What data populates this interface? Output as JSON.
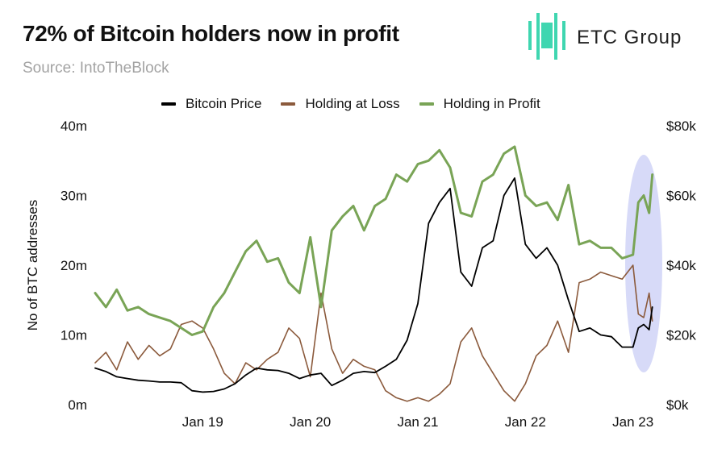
{
  "header": {
    "title": "72% of Bitcoin holders now in profit",
    "source": "Source: IntoTheBlock"
  },
  "brand": {
    "name": "ETC Group",
    "mark_icon": "etc-group-logo-icon",
    "mark_color": "#3fd6b0"
  },
  "legend": [
    {
      "label": "Bitcoin Price",
      "color": "#000000"
    },
    {
      "label": "Holding at Loss",
      "color": "#8b5a3c"
    },
    {
      "label": "Holding in Profit",
      "color": "#79a456"
    }
  ],
  "highlight": {
    "color": "#c9cdf5",
    "note": "recent period"
  },
  "chart_data": {
    "type": "line",
    "ylabel": "No of BTC addresses",
    "y_left_ticks": [
      "0m",
      "10m",
      "20m",
      "30m",
      "40m"
    ],
    "y_left_range": [
      0,
      40
    ],
    "y_right_ticks": [
      "$0k",
      "$20k",
      "$40k",
      "$60k",
      "$80k"
    ],
    "y_right_range": [
      0,
      80
    ],
    "x_ticks": [
      "Jan 19",
      "Jan 20",
      "Jan 21",
      "Jan 22",
      "Jan 23"
    ],
    "x_tick_positions": [
      2019.0,
      2020.0,
      2021.0,
      2022.0,
      2023.0
    ],
    "x_range": [
      2018.0,
      2023.25
    ],
    "series": [
      {
        "name": "Bitcoin Price",
        "axis": "right",
        "color": "#000000",
        "x": [
          2018.0,
          2018.1,
          2018.2,
          2018.3,
          2018.4,
          2018.5,
          2018.6,
          2018.7,
          2018.8,
          2018.9,
          2019.0,
          2019.1,
          2019.2,
          2019.3,
          2019.4,
          2019.5,
          2019.6,
          2019.7,
          2019.8,
          2019.9,
          2020.0,
          2020.1,
          2020.2,
          2020.3,
          2020.4,
          2020.5,
          2020.6,
          2020.7,
          2020.8,
          2020.9,
          2021.0,
          2021.1,
          2021.2,
          2021.3,
          2021.4,
          2021.5,
          2021.6,
          2021.7,
          2021.8,
          2021.9,
          2022.0,
          2022.1,
          2022.2,
          2022.3,
          2022.4,
          2022.5,
          2022.6,
          2022.7,
          2022.8,
          2022.9,
          2023.0,
          2023.05,
          2023.1,
          2023.15,
          2023.18
        ],
        "values": [
          10.5,
          9.5,
          8.0,
          7.5,
          7.0,
          6.8,
          6.5,
          6.5,
          6.3,
          4.0,
          3.6,
          3.8,
          4.5,
          6.0,
          8.5,
          10.5,
          10.0,
          9.8,
          9.0,
          7.5,
          8.5,
          9.0,
          5.5,
          7.0,
          9.0,
          9.5,
          9.2,
          11.0,
          13.0,
          18.5,
          29.0,
          52.0,
          58.0,
          62.0,
          38.0,
          34.0,
          45.0,
          47.0,
          60.0,
          65.0,
          46.0,
          42.0,
          45.0,
          40.0,
          30.0,
          21.0,
          22.0,
          20.0,
          19.5,
          16.5,
          16.5,
          22.0,
          23.0,
          21.5,
          28.0
        ]
      },
      {
        "name": "Holding at Loss",
        "axis": "left",
        "color": "#8b5a3c",
        "x": [
          2018.0,
          2018.1,
          2018.2,
          2018.3,
          2018.4,
          2018.5,
          2018.6,
          2018.7,
          2018.8,
          2018.9,
          2019.0,
          2019.1,
          2019.2,
          2019.3,
          2019.4,
          2019.5,
          2019.6,
          2019.7,
          2019.8,
          2019.9,
          2020.0,
          2020.1,
          2020.2,
          2020.3,
          2020.4,
          2020.5,
          2020.6,
          2020.7,
          2020.8,
          2020.9,
          2021.0,
          2021.1,
          2021.2,
          2021.3,
          2021.4,
          2021.5,
          2021.6,
          2021.7,
          2021.8,
          2021.9,
          2022.0,
          2022.1,
          2022.2,
          2022.3,
          2022.4,
          2022.5,
          2022.6,
          2022.7,
          2022.8,
          2022.9,
          2023.0,
          2023.05,
          2023.1,
          2023.15,
          2023.18
        ],
        "values": [
          6.0,
          7.5,
          5.0,
          9.0,
          6.5,
          8.5,
          7.0,
          8.0,
          11.5,
          12.0,
          11.0,
          8.0,
          4.5,
          3.0,
          6.0,
          5.0,
          6.5,
          7.5,
          11.0,
          9.5,
          4.0,
          16.0,
          8.0,
          4.5,
          6.5,
          5.5,
          5.0,
          2.0,
          1.0,
          0.5,
          1.0,
          0.5,
          1.5,
          3.0,
          9.0,
          11.0,
          7.0,
          4.5,
          2.0,
          0.5,
          3.0,
          7.0,
          8.5,
          12.0,
          7.5,
          17.5,
          18.0,
          19.0,
          18.5,
          18.0,
          20.0,
          13.0,
          12.5,
          16.0,
          12.0
        ]
      },
      {
        "name": "Holding in Profit",
        "axis": "left",
        "color": "#79a456",
        "x": [
          2018.0,
          2018.1,
          2018.2,
          2018.3,
          2018.4,
          2018.5,
          2018.6,
          2018.7,
          2018.8,
          2018.9,
          2019.0,
          2019.1,
          2019.2,
          2019.3,
          2019.4,
          2019.5,
          2019.6,
          2019.7,
          2019.8,
          2019.9,
          2020.0,
          2020.1,
          2020.2,
          2020.3,
          2020.4,
          2020.5,
          2020.6,
          2020.7,
          2020.8,
          2020.9,
          2021.0,
          2021.1,
          2021.2,
          2021.3,
          2021.4,
          2021.5,
          2021.6,
          2021.7,
          2021.8,
          2021.9,
          2022.0,
          2022.1,
          2022.2,
          2022.3,
          2022.4,
          2022.5,
          2022.6,
          2022.7,
          2022.8,
          2022.9,
          2023.0,
          2023.05,
          2023.1,
          2023.15,
          2023.18
        ],
        "values": [
          16.0,
          14.0,
          16.5,
          13.5,
          14.0,
          13.0,
          12.5,
          12.0,
          11.0,
          10.0,
          10.5,
          14.0,
          16.0,
          19.0,
          22.0,
          23.5,
          20.5,
          21.0,
          17.5,
          16.0,
          24.0,
          14.0,
          25.0,
          27.0,
          28.5,
          25.0,
          28.5,
          29.5,
          33.0,
          32.0,
          34.5,
          35.0,
          36.5,
          34.0,
          27.5,
          27.0,
          32.0,
          33.0,
          36.0,
          37.0,
          30.0,
          28.5,
          29.0,
          26.5,
          31.5,
          23.0,
          23.5,
          22.5,
          22.5,
          21.0,
          21.5,
          29.0,
          30.0,
          27.5,
          33.0
        ]
      }
    ]
  }
}
